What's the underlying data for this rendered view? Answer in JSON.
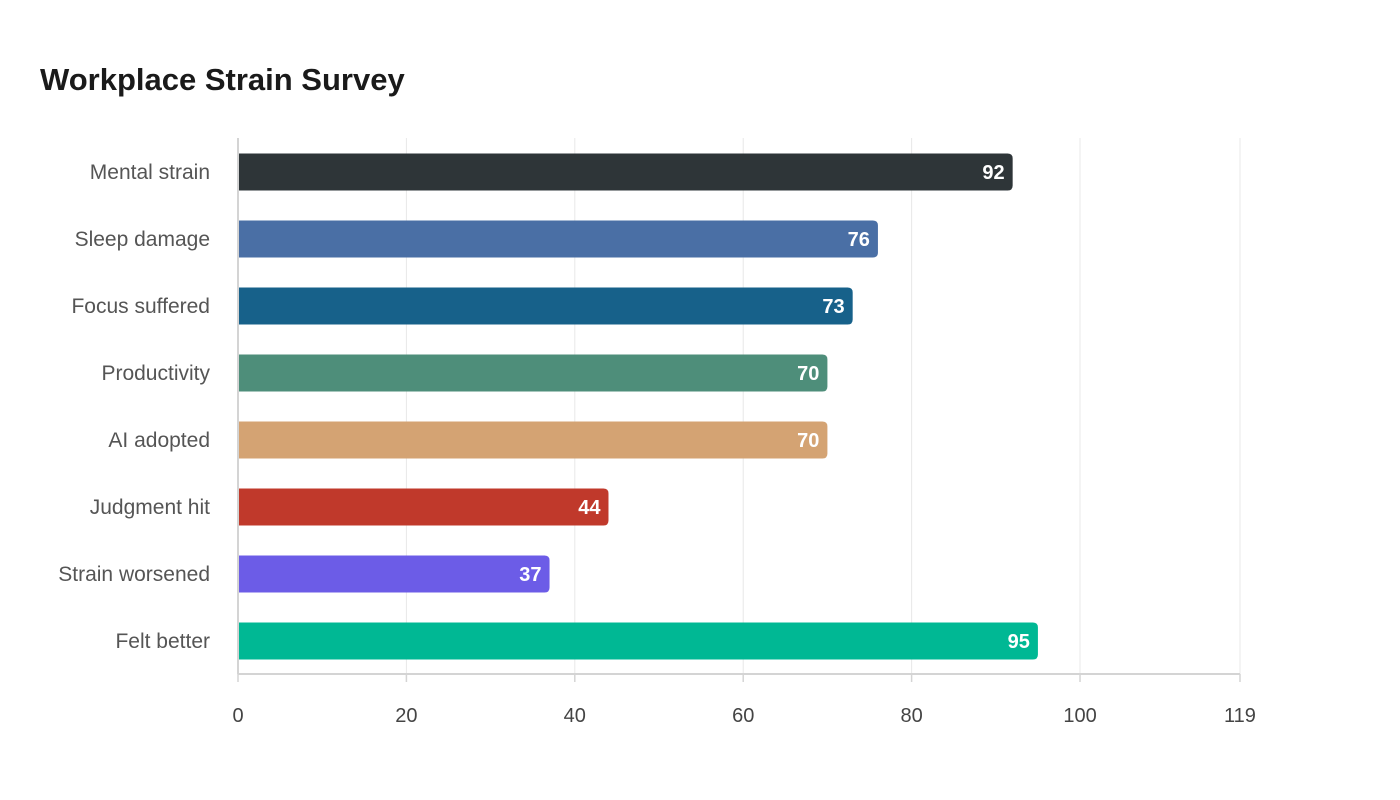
{
  "chart_data": {
    "type": "bar",
    "orientation": "horizontal",
    "title": "Workplace Strain Survey",
    "xlabel": "",
    "ylabel": "",
    "categories": [
      "Mental strain",
      "Sleep damage",
      "Focus suffered",
      "Productivity",
      "AI adopted",
      "Judgment hit",
      "Strain worsened",
      "Felt better"
    ],
    "values": [
      92,
      76,
      73,
      70,
      70,
      44,
      37,
      95
    ],
    "colors": [
      "#2e3538",
      "#4a6fa5",
      "#17618a",
      "#4e8e7a",
      "#d4a373",
      "#c0392b",
      "#6c5ce7",
      "#00b894"
    ],
    "xlim": [
      0,
      119
    ],
    "xticks": [
      0,
      20,
      40,
      60,
      80,
      100,
      119
    ],
    "xtick_labels": [
      "0",
      "20",
      "40",
      "60",
      "80",
      "100",
      "119"
    ],
    "grid": true,
    "legend": "none"
  }
}
